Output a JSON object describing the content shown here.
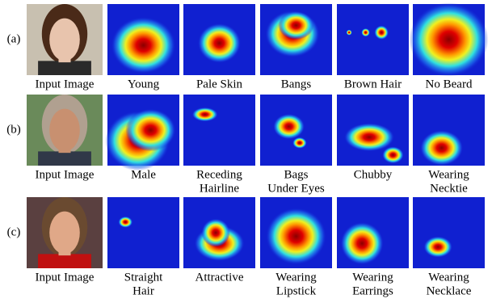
{
  "rows": [
    {
      "label": "(a)",
      "cells": [
        {
          "caption": [
            "Input Image"
          ]
        },
        {
          "caption": [
            "Young"
          ]
        },
        {
          "caption": [
            "Pale Skin"
          ]
        },
        {
          "caption": [
            "Bangs"
          ]
        },
        {
          "caption": [
            "Brown Hair"
          ]
        },
        {
          "caption": [
            "No Beard"
          ]
        }
      ]
    },
    {
      "label": "(b)",
      "cells": [
        {
          "caption": [
            "Input Image"
          ]
        },
        {
          "caption": [
            "Male"
          ]
        },
        {
          "caption": [
            "Receding",
            "Hairline"
          ]
        },
        {
          "caption": [
            "Bags",
            "Under Eyes"
          ]
        },
        {
          "caption": [
            "Chubby"
          ]
        },
        {
          "caption": [
            "Wearing",
            "Necktie"
          ]
        }
      ]
    },
    {
      "label": "(c)",
      "cells": [
        {
          "caption": [
            "Input Image"
          ]
        },
        {
          "caption": [
            "Straight",
            "Hair"
          ]
        },
        {
          "caption": [
            "Attractive"
          ]
        },
        {
          "caption": [
            "Wearing",
            "Lipstick"
          ]
        },
        {
          "caption": [
            "Wearing",
            "Earrings"
          ]
        },
        {
          "caption": [
            "Wearing",
            "Necklace"
          ]
        }
      ]
    }
  ]
}
